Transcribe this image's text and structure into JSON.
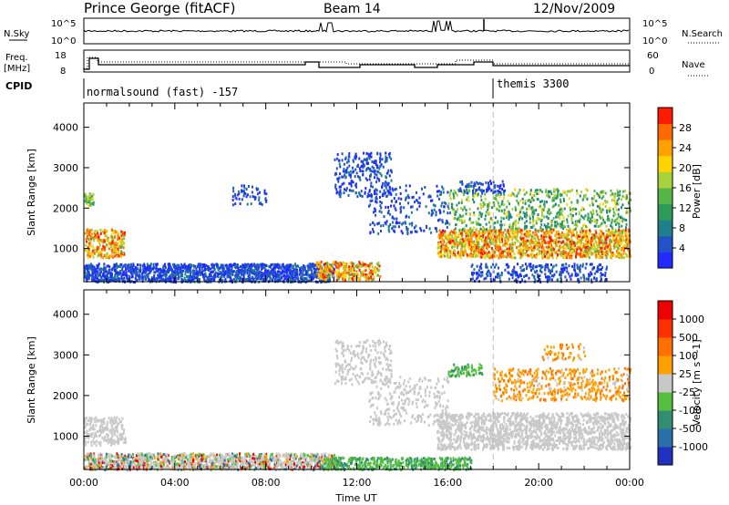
{
  "header": {
    "station": "Prince George (fitACF)",
    "beam": "Beam 14",
    "date": "12/Nov/2009"
  },
  "strip_nsky": {
    "left_label": "N.Sky",
    "right_label": "N.Search",
    "left_ticks": [
      "10^5",
      "10^0"
    ],
    "right_ticks": [
      "10^5",
      "10^0"
    ]
  },
  "strip_freq": {
    "left_label": "Freq.",
    "left_unit": "[MHz]",
    "right_label": "Nave",
    "left_ticks": [
      "18",
      "8"
    ],
    "right_ticks": [
      "60",
      "0"
    ]
  },
  "strip_cpid": {
    "label": "CPID",
    "modes": [
      {
        "name": "normalsound (fast) -157",
        "start_hour": 0
      },
      {
        "name": "themis 3300",
        "start_hour": 18
      }
    ]
  },
  "chart_data": [
    {
      "type": "heatmap",
      "panel": "power",
      "xlabel": "",
      "ylabel": "Slant Range [km]",
      "x_range_hours": [
        0,
        24
      ],
      "ylim": [
        180,
        4600
      ],
      "y_ticks": [
        "4000",
        "3000",
        "2000",
        "1000"
      ],
      "colorbar": {
        "label": "Power [dB]",
        "ticks": [
          "28",
          "24",
          "20",
          "16",
          "12",
          "8",
          "4"
        ],
        "colors": [
          "#1f2bff",
          "#2352c8",
          "#1f7f8c",
          "#2e9a5a",
          "#56b548",
          "#a8d23a",
          "#ffd400",
          "#ffa200",
          "#ff6a00",
          "#ff1a00"
        ]
      }
    },
    {
      "type": "heatmap",
      "panel": "velocity",
      "xlabel": "Time UT",
      "ylabel": "Slant Range [km]",
      "x_range_hours": [
        0,
        24
      ],
      "ylim": [
        180,
        4600
      ],
      "y_ticks": [
        "4000",
        "3000",
        "2000",
        "1000"
      ],
      "x_ticks": [
        "00:00",
        "04:00",
        "08:00",
        "12:00",
        "16:00",
        "20:00",
        "00:00"
      ],
      "colorbar": {
        "label": "Velocity [m s^-1]",
        "ticks": [
          "1000",
          "500",
          "100",
          "25",
          "-25",
          "-100",
          "-500",
          "-1000"
        ],
        "colors": [
          "#2030c0",
          "#2a70a8",
          "#2f8f70",
          "#55c040",
          "#c8c8c8",
          "#ffa000",
          "#ff7000",
          "#ff3000",
          "#ee0000"
        ]
      }
    }
  ]
}
